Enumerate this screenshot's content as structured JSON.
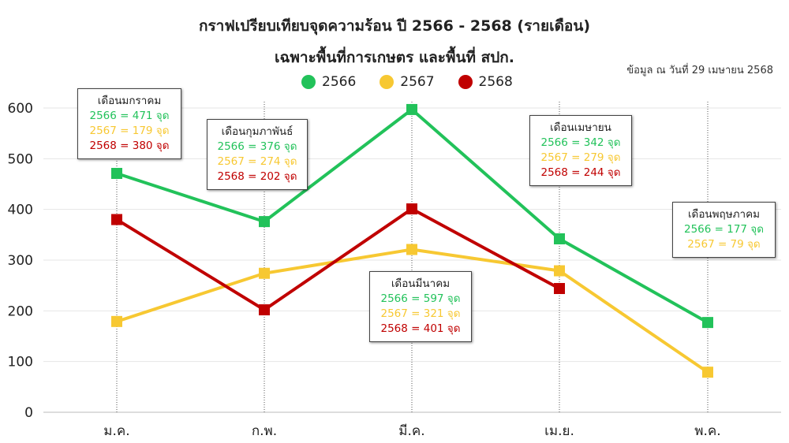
{
  "header": {
    "title_line1": "กราฟเปรียบเทียบจุดความร้อน ปี 2566 - 2568 (รายเดือน)",
    "title_line2": "เฉพาะพื้นที่การเกษตร และพื้นที่ สปก.",
    "source_note": "ข้อมูล ณ วันที่ 29 เมษายน 2568"
  },
  "colors": {
    "series_2566": "#22c25a",
    "series_2567": "#f7c832",
    "series_2568": "#c00000"
  },
  "chart_data": {
    "type": "line",
    "categories": [
      "ม.ค.",
      "ก.พ.",
      "มี.ค.",
      "เม.ย.",
      "พ.ค."
    ],
    "series": [
      {
        "name": "2566",
        "color": "#22c25a",
        "values": [
          471,
          376,
          597,
          342,
          177
        ]
      },
      {
        "name": "2567",
        "color": "#f7c832",
        "values": [
          179,
          274,
          321,
          279,
          79
        ]
      },
      {
        "name": "2568",
        "color": "#c00000",
        "values": [
          380,
          202,
          401,
          244,
          null
        ]
      }
    ],
    "ylim": [
      0,
      600
    ],
    "yticks": [
      0,
      100,
      200,
      300,
      400,
      500,
      600
    ],
    "grid": true,
    "legend_position": "top",
    "marker": "square"
  },
  "annotations": [
    {
      "title": "เดือนมกราคม",
      "lines": [
        {
          "text": "2566 = 471 จุด",
          "series": "2566"
        },
        {
          "text": "2567 = 179 จุด",
          "series": "2567"
        },
        {
          "text": "2568 = 380 จุด",
          "series": "2568"
        }
      ]
    },
    {
      "title": "เดือนกุมภาพันธ์",
      "lines": [
        {
          "text": "2566 = 376 จุด",
          "series": "2566"
        },
        {
          "text": "2567 = 274 จุด",
          "series": "2567"
        },
        {
          "text": "2568 = 202 จุด",
          "series": "2568"
        }
      ]
    },
    {
      "title": "เดือนมีนาคม",
      "lines": [
        {
          "text": "2566 = 597 จุด",
          "series": "2566"
        },
        {
          "text": "2567 = 321 จุด",
          "series": "2567"
        },
        {
          "text": "2568 = 401 จุด",
          "series": "2568"
        }
      ]
    },
    {
      "title": "เดือนเมษายน",
      "lines": [
        {
          "text": "2566 = 342 จุด",
          "series": "2566"
        },
        {
          "text": "2567 = 279 จุด",
          "series": "2567"
        },
        {
          "text": "2568 = 244 จุด",
          "series": "2568"
        }
      ]
    },
    {
      "title": "เดือนพฤษภาคม",
      "lines": [
        {
          "text": "2566 = 177 จุด",
          "series": "2566"
        },
        {
          "text": "2567 = 79 จุด",
          "series": "2567"
        }
      ]
    }
  ]
}
